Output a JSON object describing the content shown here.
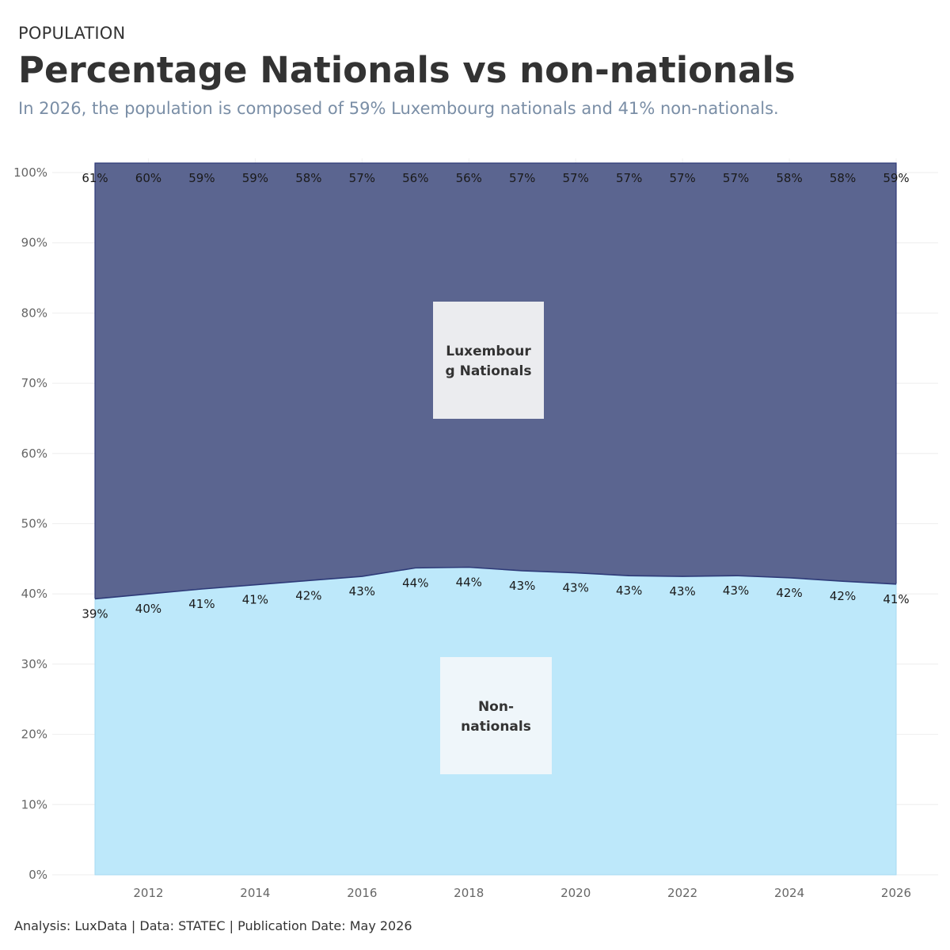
{
  "header": {
    "kicker": "POPULATION",
    "title": "Percentage Nationals vs non-nationals",
    "subtitle": "In 2026, the population is composed of 59% Luxembourg nationals and 41% non-nationals."
  },
  "footer": {
    "text": "Analysis: LuxData | Data: STATEC | Publication Date: May 2026"
  },
  "colors": {
    "nationals": "#5b6590",
    "nationals_line": "#2e3a78",
    "non_nationals": "#bde8fa",
    "label_box_top": "#ebecef",
    "label_box_bottom": "#eff6fa"
  },
  "chart_data": {
    "type": "area",
    "stacked": true,
    "normalized": true,
    "x": [
      2011,
      2012,
      2013,
      2014,
      2015,
      2016,
      2017,
      2018,
      2019,
      2020,
      2021,
      2022,
      2023,
      2024,
      2025,
      2026
    ],
    "xticks": [
      2012,
      2014,
      2016,
      2018,
      2020,
      2022,
      2024,
      2026
    ],
    "yticks": [
      "0%",
      "10%",
      "20%",
      "30%",
      "40%",
      "50%",
      "60%",
      "70%",
      "80%",
      "90%",
      "100%"
    ],
    "ylim": [
      0,
      100
    ],
    "grid": true,
    "series": [
      {
        "name": "Non-nationals",
        "values": [
          39.3,
          40.0,
          40.7,
          41.3,
          41.9,
          42.5,
          43.7,
          43.8,
          43.3,
          43.0,
          42.6,
          42.5,
          42.6,
          42.3,
          41.8,
          41.4
        ],
        "labels": [
          "39%",
          "40%",
          "41%",
          "41%",
          "42%",
          "43%",
          "44%",
          "44%",
          "43%",
          "43%",
          "43%",
          "43%",
          "43%",
          "42%",
          "42%",
          "41%"
        ]
      },
      {
        "name": "Luxembourg Nationals",
        "values": [
          60.7,
          60.0,
          59.3,
          58.7,
          58.1,
          57.5,
          56.3,
          56.2,
          56.7,
          57.0,
          57.4,
          57.5,
          57.4,
          57.7,
          58.2,
          58.6
        ],
        "labels": [
          "61%",
          "60%",
          "59%",
          "59%",
          "58%",
          "57%",
          "56%",
          "56%",
          "57%",
          "57%",
          "57%",
          "57%",
          "57%",
          "58%",
          "58%",
          "59%"
        ]
      }
    ],
    "annotations": [
      {
        "lines": [
          "Luxembour",
          "g Nationals"
        ],
        "series": "Luxembourg Nationals"
      },
      {
        "lines": [
          "Non-",
          "nationals"
        ],
        "series": "Non-nationals"
      }
    ]
  }
}
